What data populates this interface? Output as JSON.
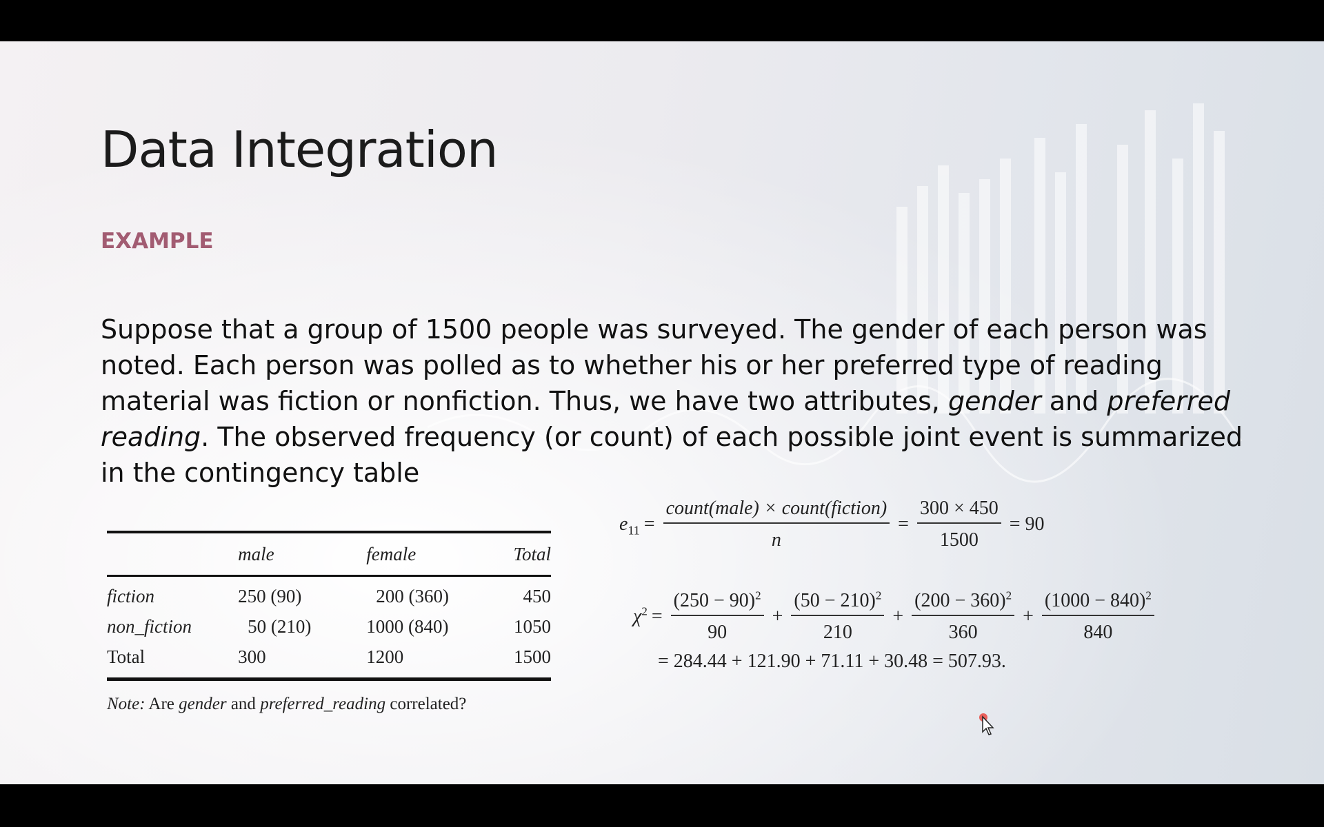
{
  "slide": {
    "title": "Data Integration",
    "subheading": "EXAMPLE",
    "paragraph": {
      "part1": "Suppose that a group of 1500 people was surveyed. The gender of each person was noted. Each person was polled as to whether his or her preferred type of reading material was fiction or nonfiction. Thus, we have two attributes, ",
      "em1": "gender",
      "part2": " and ",
      "em2": "preferred reading",
      "part3": ". The observed frequency (or count) of each possible joint event is summarized in the contingency table"
    }
  },
  "contingency_table": {
    "headers": [
      "",
      "male",
      "female",
      "Total"
    ],
    "rows": [
      [
        "fiction",
        "250 (90)",
        "200 (360)",
        "450"
      ],
      [
        "non_fiction",
        "50 (210)",
        "1000 (840)",
        "1050"
      ],
      [
        "Total",
        "300",
        "1200",
        "1500"
      ]
    ],
    "note": {
      "prefix": "Note:",
      "t1": " Are ",
      "em1": "gender",
      "t2": " and ",
      "em2": "preferred_reading",
      "t3": " correlated?"
    }
  },
  "formulas": {
    "e11": {
      "lhs_symbol": "e",
      "lhs_sub": "11",
      "eq": "=",
      "num1": "count(male) × count(fiction)",
      "den1": "n",
      "num2": "300 × 450",
      "den2": "1500",
      "result": "= 90"
    },
    "chi": {
      "symbol": "χ",
      "sup": "2",
      "eq": "=",
      "plus": "+",
      "terms": [
        {
          "num": "(250 − 90)",
          "den": "90"
        },
        {
          "num": "(50 − 210)",
          "den": "210"
        },
        {
          "num": "(200 − 360)",
          "den": "360"
        },
        {
          "num": "(1000 − 840)",
          "den": "840"
        }
      ],
      "result_line": "= 284.44 + 121.90 + 71.11 + 30.48 = 507.93."
    }
  }
}
